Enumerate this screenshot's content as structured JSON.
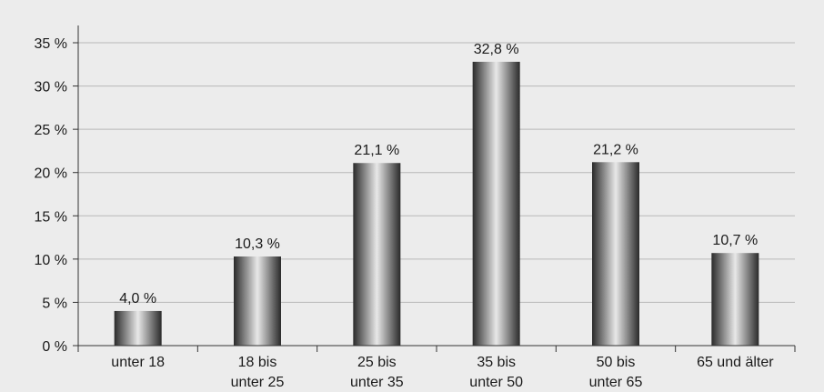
{
  "chart_data": {
    "type": "bar",
    "title": "",
    "xlabel": "",
    "ylabel": "",
    "ylim": [
      0,
      35
    ],
    "yticks": [
      0,
      5,
      10,
      15,
      20,
      25,
      30,
      35
    ],
    "ytick_labels": [
      "0 %",
      "5 %",
      "10 %",
      "15 %",
      "20 %",
      "25 %",
      "30 %",
      "35 %"
    ],
    "grid": true,
    "categories": [
      [
        "unter 18"
      ],
      [
        "18 bis",
        "unter 25"
      ],
      [
        "25 bis",
        "unter 35"
      ],
      [
        "35 bis",
        "unter 50"
      ],
      [
        "50 bis",
        "unter 65"
      ],
      [
        "65 und älter"
      ]
    ],
    "values": [
      4.0,
      10.3,
      21.1,
      32.8,
      21.2,
      10.7
    ],
    "value_labels": [
      "4,0 %",
      "10,3 %",
      "21,1 %",
      "32,8 %",
      "21,2 %",
      "10,7 %"
    ],
    "colors": {
      "background": "#ececec",
      "grid": "#b8b8b8",
      "axis": "#333333",
      "bar_dark": "#2a2a2a",
      "bar_light": "#e8e8e8"
    }
  }
}
